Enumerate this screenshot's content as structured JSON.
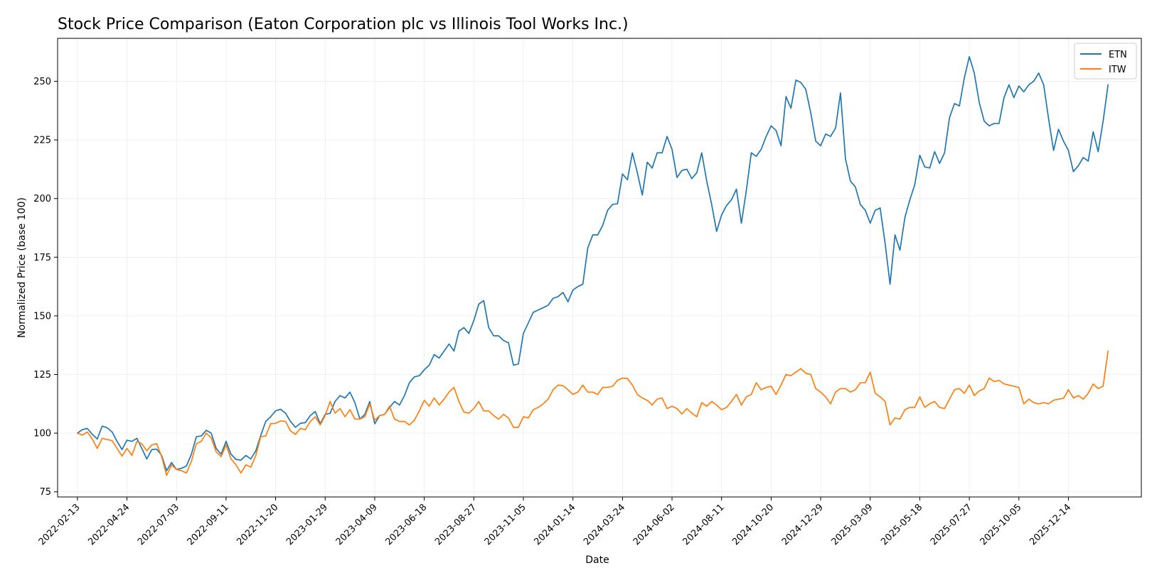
{
  "chart_data": {
    "type": "line",
    "title": "Stock Price Comparison (Eaton Corporation plc vs Illinois Tool Works Inc.)",
    "xlabel": "Date",
    "ylabel": "Normalized Price (base 100)",
    "ylim": [
      72.8,
      268.3
    ],
    "yticks": [
      75,
      100,
      125,
      150,
      175,
      200,
      225,
      250
    ],
    "xlim": [
      "2022-01-16",
      "2026-03-27"
    ],
    "xticks": [
      "2022-02-13",
      "2022-04-24",
      "2022-07-03",
      "2022-09-11",
      "2022-11-20",
      "2023-01-29",
      "2023-04-09",
      "2023-06-18",
      "2023-08-27",
      "2023-11-05",
      "2024-01-14",
      "2024-03-24",
      "2024-06-02",
      "2024-08-11",
      "2024-10-20",
      "2024-12-29",
      "2025-03-09",
      "2025-05-18",
      "2025-07-27",
      "2025-10-05",
      "2025-12-14"
    ],
    "grid": true,
    "legend_position": "top-right",
    "x_start": "2022-02-13",
    "x_step_days": 7,
    "series": [
      {
        "name": "ETN",
        "color": "#1f77b4",
        "values": [
          100,
          101.5,
          102,
          99.5,
          97.5,
          103,
          102.3,
          100.5,
          96.5,
          93,
          97,
          96.5,
          97.8,
          93.5,
          89,
          93,
          93.2,
          90.5,
          84,
          87.5,
          84.5,
          85,
          86,
          91,
          98.5,
          98.8,
          101.2,
          100,
          93.5,
          91,
          96.5,
          91,
          88.8,
          88.5,
          90.5,
          89,
          92.5,
          99,
          105,
          107,
          109.5,
          110.2,
          108.5,
          105,
          102.5,
          104.2,
          104.5,
          107.5,
          109.2,
          104,
          108,
          108.5,
          113.5,
          116,
          115,
          117.5,
          113,
          106,
          108,
          113.5,
          104,
          107.5,
          108,
          111,
          113.5,
          112,
          116,
          121.5,
          124,
          124.5,
          127,
          129,
          133.5,
          132,
          135,
          138,
          135,
          143.5,
          145,
          142.5,
          148,
          155,
          156.5,
          145,
          141.5,
          141.5,
          139.5,
          138.5,
          129,
          129.5,
          142.5,
          147,
          151.5,
          152.5,
          153.5,
          154.5,
          157.5,
          158.2,
          160,
          156,
          161,
          162.5,
          163.5,
          179,
          184.5,
          184.5,
          188.5,
          195,
          197.5,
          197.8,
          210.5,
          208,
          219.5,
          211,
          201.5,
          215.5,
          213,
          219.5,
          219.5,
          226.5,
          221,
          209,
          212,
          212.5,
          208.5,
          211,
          219.5,
          207.5,
          197.5,
          186,
          193,
          197,
          199.5,
          204,
          189.5,
          203.5,
          219.5,
          218,
          221,
          226.5,
          231,
          229,
          222.5,
          243.5,
          238.5,
          250.5,
          249.5,
          246.5,
          236.5,
          224.5,
          222.5,
          227.5,
          226.5,
          230,
          245,
          217,
          207.5,
          205,
          197.5,
          195,
          189.5,
          195,
          196,
          181,
          163.5,
          184.5,
          178,
          192,
          199.5,
          206,
          218.5,
          213.5,
          213,
          220,
          215,
          219.5,
          234.5,
          240.5,
          239.5,
          251.5,
          260.5,
          253.5,
          241,
          233,
          231,
          232,
          232,
          243,
          248.5,
          243,
          248,
          245.5,
          248.5,
          250,
          253.5,
          248.5,
          234,
          220.5,
          229.5,
          224.5,
          220.5,
          211.5,
          214,
          217.5,
          216,
          228.5,
          220,
          233,
          248.5
        ]
      },
      {
        "name": "ITW",
        "color": "#ff7f0e",
        "values": [
          100,
          99.2,
          100.5,
          97.5,
          93.5,
          97.8,
          97.3,
          96.8,
          93.5,
          90.2,
          93.5,
          90.5,
          96.5,
          95.5,
          92.5,
          95,
          95.5,
          90,
          82,
          86.5,
          84.5,
          84,
          83,
          88,
          95.5,
          96.5,
          100,
          98,
          92,
          90,
          95,
          89,
          86.5,
          83,
          86.5,
          85.5,
          90.5,
          98.5,
          98.8,
          104,
          104.2,
          105.2,
          105,
          101,
          99.5,
          102,
          101.5,
          105,
          107,
          103.5,
          107.5,
          113.5,
          108.5,
          110.5,
          107,
          110,
          106,
          106,
          107,
          112.5,
          105.5,
          107.5,
          108,
          111.5,
          106,
          105,
          105,
          103.5,
          105.5,
          109.5,
          114,
          111.5,
          115,
          112,
          114.5,
          117.5,
          119.5,
          113.5,
          109,
          108.5,
          110.5,
          113.5,
          109.5,
          109.5,
          107.5,
          106,
          108,
          106.5,
          102.5,
          102.5,
          107,
          106.5,
          110,
          111,
          112.5,
          114.5,
          118.5,
          120.5,
          120.2,
          118.5,
          116.5,
          117.5,
          120.5,
          117.5,
          117.5,
          116.5,
          119.5,
          119.5,
          120,
          122.5,
          123.5,
          123.3,
          120.5,
          116.5,
          115,
          114,
          112,
          114.5,
          115,
          110.5,
          111.5,
          110.5,
          108.2,
          110.5,
          108.5,
          107,
          113,
          111.5,
          113.5,
          112,
          110,
          111,
          113.5,
          116.5,
          112,
          115.5,
          116.5,
          121.5,
          118.5,
          119.5,
          120,
          116.5,
          120.5,
          125,
          124.5,
          126,
          127.5,
          125.5,
          125,
          119,
          117.5,
          115.5,
          112.5,
          117.5,
          119,
          119,
          117.5,
          118.5,
          121.5,
          121.5,
          126,
          117,
          115.5,
          113.5,
          103.5,
          106.5,
          106,
          110,
          111,
          111,
          115.5,
          111,
          112.5,
          113.5,
          111,
          110.5,
          114.5,
          118.5,
          119,
          117,
          120.5,
          116,
          118,
          119,
          123.5,
          122,
          122.5,
          121,
          120.5,
          120,
          119.5,
          112.5,
          114.5,
          113,
          112.5,
          113,
          112.5,
          114,
          114.5,
          114.8,
          118.5,
          115,
          116,
          114.5,
          117,
          121,
          119,
          120,
          135
        ]
      }
    ]
  }
}
